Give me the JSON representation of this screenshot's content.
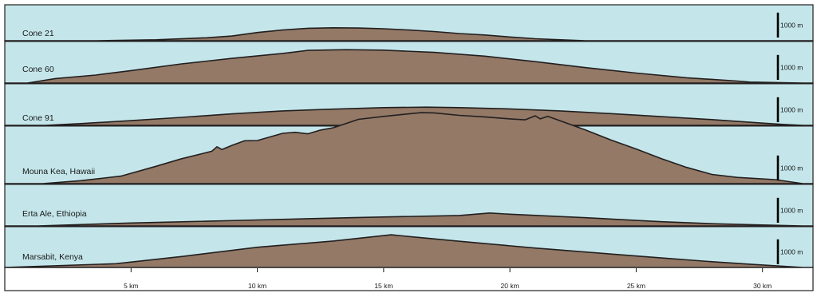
{
  "chart_data": {
    "type": "area",
    "title": "",
    "xlabel": "",
    "ylabel": "",
    "x_unit": "km",
    "xlim": [
      0,
      32
    ],
    "x_ticks": [
      5,
      10,
      15,
      20,
      25,
      30
    ],
    "x_tick_labels": [
      "5 km",
      "10 km",
      "15 km",
      "20 km",
      "25 km",
      "30 km"
    ],
    "scale_bar_value_m": 1000,
    "scale_bar_label": "1000 m",
    "grid": false,
    "series": [
      {
        "name": "Cone 21",
        "profile": [
          [
            3.6,
            0
          ],
          [
            6,
            40
          ],
          [
            8,
            120
          ],
          [
            9,
            190
          ],
          [
            10,
            330
          ],
          [
            11,
            430
          ],
          [
            12,
            500
          ],
          [
            13,
            520
          ],
          [
            14,
            510
          ],
          [
            15,
            480
          ],
          [
            16,
            430
          ],
          [
            17,
            370
          ],
          [
            18,
            290
          ],
          [
            19,
            230
          ],
          [
            20.1,
            140
          ],
          [
            21,
            80
          ],
          [
            22,
            40
          ],
          [
            23,
            0
          ]
        ]
      },
      {
        "name": "Cone 60",
        "profile": [
          [
            0.9,
            0
          ],
          [
            2,
            180
          ],
          [
            3.6,
            320
          ],
          [
            5,
            500
          ],
          [
            7,
            770
          ],
          [
            9,
            990
          ],
          [
            11,
            1190
          ],
          [
            12,
            1310
          ],
          [
            13.5,
            1340
          ],
          [
            15,
            1320
          ],
          [
            17,
            1230
          ],
          [
            19,
            1080
          ],
          [
            21,
            860
          ],
          [
            23,
            620
          ],
          [
            25,
            400
          ],
          [
            27,
            210
          ],
          [
            29,
            80
          ],
          [
            29.5,
            40
          ],
          [
            31.6,
            0
          ]
        ]
      },
      {
        "name": "Cone 91",
        "profile": [
          [
            1.6,
            0
          ],
          [
            3,
            70
          ],
          [
            5,
            190
          ],
          [
            7,
            320
          ],
          [
            9,
            460
          ],
          [
            11,
            580
          ],
          [
            13,
            650
          ],
          [
            15,
            710
          ],
          [
            16.7,
            730
          ],
          [
            18,
            710
          ],
          [
            20,
            660
          ],
          [
            22,
            580
          ],
          [
            24,
            470
          ],
          [
            26,
            350
          ],
          [
            28,
            230
          ],
          [
            30,
            90
          ],
          [
            30.8,
            40
          ],
          [
            31.6,
            0
          ]
        ]
      },
      {
        "name": "Mouna Kea, Hawaii",
        "profile": [
          [
            1.5,
            0
          ],
          [
            3,
            120
          ],
          [
            4.6,
            300
          ],
          [
            6,
            700
          ],
          [
            7,
            1000
          ],
          [
            8.2,
            1300
          ],
          [
            8.4,
            1480
          ],
          [
            8.6,
            1370
          ],
          [
            9,
            1540
          ],
          [
            9.5,
            1720
          ],
          [
            10,
            1730
          ],
          [
            11,
            2020
          ],
          [
            11.5,
            2060
          ],
          [
            12,
            2000
          ],
          [
            12.5,
            2150
          ],
          [
            13,
            2240
          ],
          [
            14,
            2580
          ],
          [
            15,
            2700
          ],
          [
            16,
            2800
          ],
          [
            16.5,
            2850
          ],
          [
            17,
            2840
          ],
          [
            18,
            2740
          ],
          [
            19,
            2680
          ],
          [
            20,
            2600
          ],
          [
            20.6,
            2560
          ],
          [
            21,
            2720
          ],
          [
            21.2,
            2600
          ],
          [
            21.5,
            2700
          ],
          [
            22,
            2520
          ],
          [
            23,
            2150
          ],
          [
            24,
            1750
          ],
          [
            25,
            1390
          ],
          [
            26,
            1000
          ],
          [
            27,
            650
          ],
          [
            28,
            370
          ],
          [
            29,
            250
          ],
          [
            30.5,
            160
          ],
          [
            31.6,
            0
          ]
        ]
      },
      {
        "name": "Erta Ale, Ethiopia",
        "profile": [
          [
            1.3,
            0
          ],
          [
            5,
            120
          ],
          [
            10,
            240
          ],
          [
            14,
            340
          ],
          [
            18,
            420
          ],
          [
            19.2,
            520
          ],
          [
            20,
            470
          ],
          [
            23,
            330
          ],
          [
            26,
            170
          ],
          [
            28,
            90
          ],
          [
            30,
            40
          ],
          [
            31.6,
            0
          ]
        ]
      },
      {
        "name": "Marsabit, Kenya",
        "profile": [
          [
            0,
            0
          ],
          [
            4.4,
            150
          ],
          [
            7,
            440
          ],
          [
            10,
            810
          ],
          [
            13,
            1060
          ],
          [
            15.3,
            1310
          ],
          [
            18,
            1050
          ],
          [
            21,
            780
          ],
          [
            24,
            540
          ],
          [
            26,
            380
          ],
          [
            28,
            230
          ],
          [
            29.5,
            130
          ],
          [
            31.6,
            0
          ]
        ]
      }
    ]
  }
}
